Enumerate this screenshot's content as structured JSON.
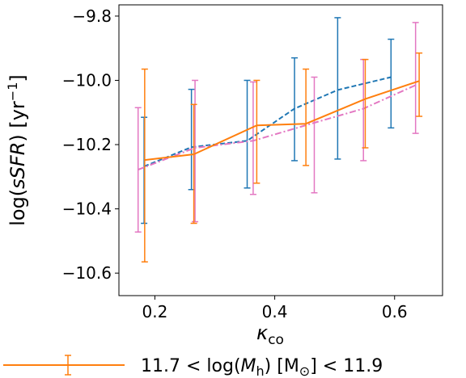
{
  "chart_data": {
    "type": "line",
    "xlabel": "κ_co",
    "ylabel": "log(sSFR) [yr⁻¹]",
    "xlim": [
      0.14,
      0.68
    ],
    "ylim": [
      -10.67,
      -9.765
    ],
    "xticks": [
      0.2,
      0.4,
      0.6
    ],
    "xtick_labels": [
      "0.2",
      "0.4",
      "0.6"
    ],
    "yticks": [
      -10.6,
      -10.4,
      -10.2,
      -10.0,
      -9.8
    ],
    "ytick_labels": [
      "−10.6",
      "−10.4",
      "−10.2",
      "−10.0",
      "−9.8"
    ],
    "grid": false,
    "legend_position": "bottom-left, below axes",
    "series": [
      {
        "color": "#1f77b4",
        "style": "dashed",
        "x": [
          0.182,
          0.261,
          0.354,
          0.433,
          0.505,
          0.594
        ],
        "y": [
          -10.268,
          -10.208,
          -10.188,
          -10.088,
          -10.03,
          -9.99
        ],
        "err_low": [
          -10.445,
          -10.34,
          -10.335,
          -10.25,
          -10.245,
          -10.148
        ],
        "err_high": [
          -10.115,
          -10.028,
          -10.0,
          -9.93,
          -9.805,
          -9.872
        ]
      },
      {
        "color": "#e377c2",
        "style": "dashdot",
        "x": [
          0.172,
          0.267,
          0.364,
          0.466,
          0.548,
          0.635
        ],
        "y": [
          -10.278,
          -10.21,
          -10.188,
          -10.132,
          -10.088,
          -10.015
        ],
        "err_low": [
          -10.472,
          -10.44,
          -10.355,
          -10.35,
          -10.25,
          -10.165
        ],
        "err_high": [
          -10.085,
          -10.0,
          -10.005,
          -9.99,
          -9.935,
          -9.82
        ]
      },
      {
        "name": "11.7 < log(Mh) [M⊙] < 11.9",
        "color": "#ff7f0e",
        "style": "solid",
        "x": [
          0.183,
          0.265,
          0.37,
          0.452,
          0.551,
          0.641
        ],
        "y": [
          -10.248,
          -10.23,
          -10.14,
          -10.135,
          -10.058,
          -10.002
        ],
        "err_low": [
          -10.565,
          -10.445,
          -10.32,
          -10.265,
          -10.21,
          -10.112
        ],
        "err_high": [
          -9.965,
          -10.075,
          -10.0,
          -9.965,
          -9.935,
          -9.915
        ]
      }
    ],
    "legend": [
      {
        "series_index": 2,
        "parts": [
          "11.7",
          "<",
          "log(",
          "M",
          "h",
          ") [M",
          "⊙",
          "]",
          "<",
          "11.9"
        ]
      }
    ]
  }
}
